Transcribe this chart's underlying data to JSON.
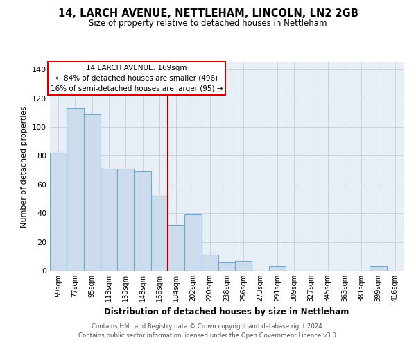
{
  "title": "14, LARCH AVENUE, NETTLEHAM, LINCOLN, LN2 2GB",
  "subtitle": "Size of property relative to detached houses in Nettleham",
  "xlabel": "Distribution of detached houses by size in Nettleham",
  "ylabel": "Number of detached properties",
  "bar_labels": [
    "59sqm",
    "77sqm",
    "95sqm",
    "113sqm",
    "130sqm",
    "148sqm",
    "166sqm",
    "184sqm",
    "202sqm",
    "220sqm",
    "238sqm",
    "256sqm",
    "273sqm",
    "291sqm",
    "309sqm",
    "327sqm",
    "345sqm",
    "363sqm",
    "381sqm",
    "399sqm",
    "416sqm"
  ],
  "bar_values": [
    82,
    113,
    109,
    71,
    71,
    69,
    52,
    32,
    39,
    11,
    6,
    7,
    0,
    3,
    0,
    0,
    0,
    0,
    0,
    3,
    0
  ],
  "bar_color": "#ccdcec",
  "bar_edgecolor": "#6aaad4",
  "vline_idx": 6,
  "vline_color": "#aa0000",
  "annotation_line1": "14 LARCH AVENUE: 169sqm",
  "annotation_line2": "← 84% of detached houses are smaller (496)",
  "annotation_line3": "16% of semi-detached houses are larger (95) →",
  "annotation_box_edgecolor": "#cc0000",
  "annotation_box_facecolor": "#ffffff",
  "ylim": [
    0,
    145
  ],
  "yticks": [
    0,
    20,
    40,
    60,
    80,
    100,
    120,
    140
  ],
  "plot_bg": "#e8eef6",
  "grid_color": "#c5cdd8",
  "footer_line1": "Contains HM Land Registry data © Crown copyright and database right 2024.",
  "footer_line2": "Contains public sector information licensed under the Open Government Licence v3.0."
}
